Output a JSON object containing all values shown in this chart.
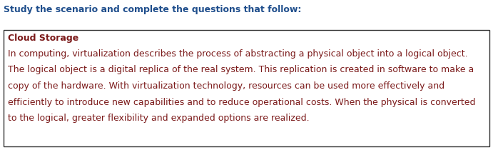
{
  "header_text": "Study the scenario and complete the questions that follow:",
  "box_title": "Cloud Storage",
  "body_lines": [
    "In computing, virtualization describes the process of abstracting a physical object into a logical object.",
    "The logical object is a digital replica of the real system. This replication is created in software to make a",
    "copy of the hardware. With virtualization technology, resources can be used more effectively and",
    "efficiently to introduce new capabilities and to reduce operational costs. When the physical is converted",
    "to the logical, greater flexibility and expanded options are realized."
  ],
  "header_color": "#1F4E8C",
  "title_color": "#7B1A1A",
  "body_color": "#7B1A1A",
  "bg_color": "#FFFFFF",
  "box_edge_color": "#333333",
  "header_fontsize": 9.0,
  "title_fontsize": 9.0,
  "body_fontsize": 9.0,
  "fig_width": 6.91,
  "fig_height": 2.1,
  "dpi": 100
}
